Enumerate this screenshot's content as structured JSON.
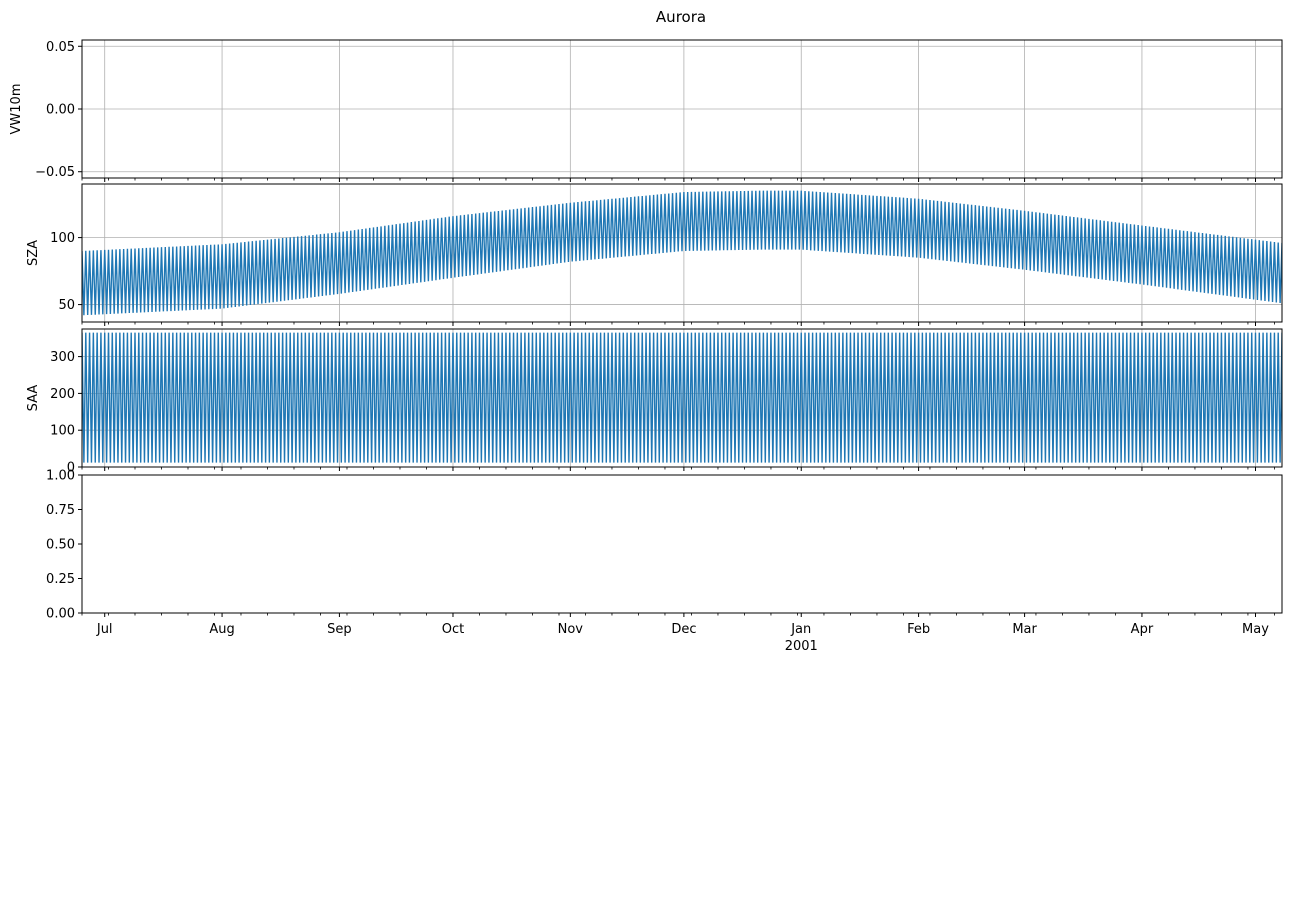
{
  "title": "Aurora",
  "colors": {
    "series": "#1f77b4",
    "grid": "#b0b0b0",
    "axes": "#000000"
  },
  "chart_data": {
    "type": "line",
    "title": "Aurora",
    "shared_x": {
      "type": "date",
      "range": [
        "2000-06-25",
        "2001-05-08"
      ],
      "month_ticks": [
        {
          "date": "2000-07-01",
          "label": "Jul"
        },
        {
          "date": "2000-08-01",
          "label": "Aug"
        },
        {
          "date": "2000-09-01",
          "label": "Sep"
        },
        {
          "date": "2000-10-01",
          "label": "Oct"
        },
        {
          "date": "2000-11-01",
          "label": "Nov"
        },
        {
          "date": "2000-12-01",
          "label": "Dec"
        },
        {
          "date": "2001-01-01",
          "label": "Jan"
        },
        {
          "date": "2001-02-01",
          "label": "Feb"
        },
        {
          "date": "2001-03-01",
          "label": "Mar"
        },
        {
          "date": "2001-04-01",
          "label": "Apr"
        },
        {
          "date": "2001-05-01",
          "label": "May"
        }
      ],
      "year_label": "2001",
      "minor_ticks": "weekly"
    },
    "panels": [
      {
        "ylabel": "VW10m",
        "ylim": [
          -0.055,
          0.055
        ],
        "yticks": [
          "-0.05",
          "0.00",
          "0.05"
        ],
        "grid": true,
        "series": []
      },
      {
        "ylabel": "SZA",
        "ylim": [
          37,
          140
        ],
        "yticks": [
          "50",
          "100"
        ],
        "grid": true,
        "series": [
          {
            "kind": "daily-oscillation-envelope",
            "x": [
              "2000-06-25",
              "2000-08-01",
              "2000-09-01",
              "2000-10-01",
              "2000-11-01",
              "2000-12-01",
              "2000-12-21",
              "2001-01-01",
              "2001-02-01",
              "2001-03-01",
              "2001-04-01",
              "2001-05-08"
            ],
            "min": [
              42,
              47,
              58,
              70,
              82,
              90,
              91,
              91,
              85,
              76,
              65,
              51
            ],
            "max": [
              90,
              95,
              104,
              116,
              126,
              134,
              135,
              135,
              129,
              120,
              109,
              96
            ]
          }
        ]
      },
      {
        "ylabel": "SAA",
        "ylim": [
          0,
          375
        ],
        "yticks": [
          "0",
          "100",
          "200",
          "300"
        ],
        "grid": true,
        "series": [
          {
            "kind": "daily-oscillation-envelope",
            "x": [
              "2000-06-25",
              "2001-05-08"
            ],
            "min": [
              12,
              12
            ],
            "max": [
              365,
              365
            ]
          }
        ]
      },
      {
        "ylabel": "",
        "ylim": [
          0,
          1
        ],
        "yticks": [
          "0.00",
          "0.25",
          "0.50",
          "0.75",
          "1.00"
        ],
        "grid": false,
        "series": []
      }
    ]
  }
}
